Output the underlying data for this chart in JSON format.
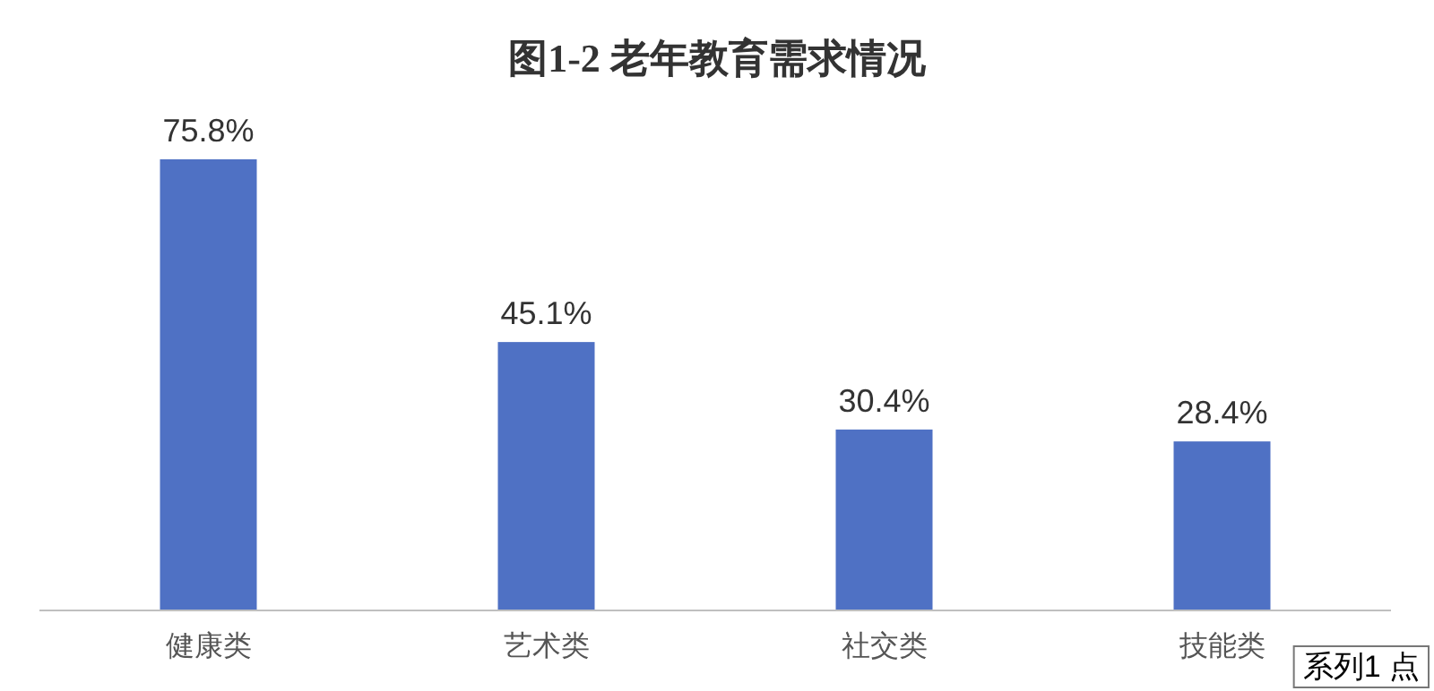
{
  "chart_data": {
    "type": "bar",
    "title": "图1-2 老年教育需求情况",
    "categories": [
      "健康类",
      "艺术类",
      "社交类",
      "技能类"
    ],
    "values": [
      75.8,
      45.1,
      30.4,
      28.4
    ],
    "value_labels": [
      "75.8%",
      "45.1%",
      "30.4%",
      "28.4%"
    ],
    "color": "#4f71c4",
    "annotations": [
      "系列1 点"
    ]
  }
}
